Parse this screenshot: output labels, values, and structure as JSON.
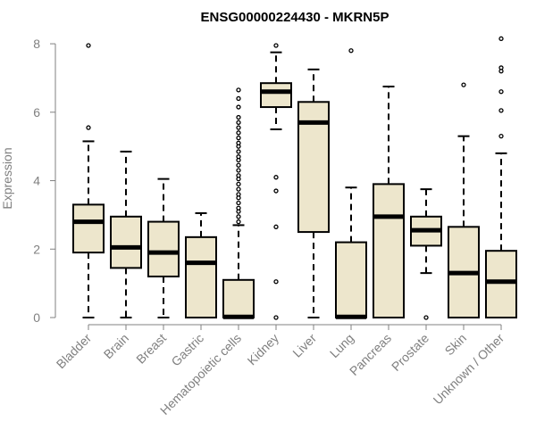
{
  "chart_data": {
    "type": "boxplot",
    "title": "ENSG00000224430 - MKRN5P",
    "ylabel": "Expression",
    "xlabel": "",
    "ylim": [
      0,
      8.2
    ],
    "yticks": [
      0,
      2,
      4,
      6,
      8
    ],
    "box_fill": "#ede6cc",
    "box_stroke": "#000000",
    "median_color": "#000000",
    "axis_color": "#808080",
    "categories": [
      "Bladder",
      "Brain",
      "Breast",
      "Gastric",
      "Hematopoietic cells",
      "Kidney",
      "Liver",
      "Lung",
      "Pancreas",
      "Prostate",
      "Skin",
      "Unknown / Other"
    ],
    "boxes": [
      {
        "name": "Bladder",
        "whisker_low": 0.0,
        "q1": 1.9,
        "median": 2.8,
        "q3": 3.3,
        "whisker_high": 5.15,
        "outliers": [
          5.55,
          7.95
        ]
      },
      {
        "name": "Brain",
        "whisker_low": 0.0,
        "q1": 1.45,
        "median": 2.05,
        "q3": 2.95,
        "whisker_high": 4.85,
        "outliers": []
      },
      {
        "name": "Breast",
        "whisker_low": 0.0,
        "q1": 1.2,
        "median": 1.9,
        "q3": 2.8,
        "whisker_high": 4.05,
        "outliers": []
      },
      {
        "name": "Gastric",
        "whisker_low": 0.0,
        "q1": 0.0,
        "median": 1.6,
        "q3": 2.35,
        "whisker_high": 3.05,
        "outliers": []
      },
      {
        "name": "Hematopoietic cells",
        "whisker_low": 0.0,
        "q1": 0.0,
        "median": 0.02,
        "q3": 1.1,
        "whisker_high": 2.7,
        "outliers": [
          2.8,
          2.95,
          3.1,
          3.2,
          3.35,
          3.5,
          3.6,
          3.75,
          3.9,
          4.05,
          4.15,
          4.3,
          4.45,
          4.6,
          4.7,
          4.85,
          5.0,
          5.1,
          5.25,
          5.4,
          5.55,
          5.7,
          5.85,
          6.15,
          6.4,
          6.65
        ]
      },
      {
        "name": "Kidney",
        "whisker_low": 5.5,
        "q1": 6.15,
        "median": 6.6,
        "q3": 6.85,
        "whisker_high": 7.75,
        "outliers": [
          0.0,
          1.05,
          2.65,
          3.7,
          4.1,
          7.95
        ]
      },
      {
        "name": "Liver",
        "whisker_low": 0.0,
        "q1": 2.5,
        "median": 5.7,
        "q3": 6.3,
        "whisker_high": 7.25,
        "outliers": []
      },
      {
        "name": "Lung",
        "whisker_low": 0.0,
        "q1": 0.0,
        "median": 0.02,
        "q3": 2.2,
        "whisker_high": 3.8,
        "outliers": [
          7.8
        ]
      },
      {
        "name": "Pancreas",
        "whisker_low": 0.0,
        "q1": 0.0,
        "median": 2.95,
        "q3": 3.9,
        "whisker_high": 6.75,
        "outliers": []
      },
      {
        "name": "Prostate",
        "whisker_low": 1.3,
        "q1": 2.1,
        "median": 2.55,
        "q3": 2.95,
        "whisker_high": 3.75,
        "outliers": [
          0.0
        ]
      },
      {
        "name": "Skin",
        "whisker_low": 0.0,
        "q1": 0.0,
        "median": 1.3,
        "q3": 2.65,
        "whisker_high": 5.3,
        "outliers": [
          6.8
        ]
      },
      {
        "name": "Unknown / Other",
        "whisker_low": 0.0,
        "q1": 0.0,
        "median": 1.05,
        "q3": 1.95,
        "whisker_high": 4.8,
        "outliers": [
          5.3,
          6.05,
          6.6,
          7.2,
          7.3,
          8.15
        ]
      }
    ]
  }
}
